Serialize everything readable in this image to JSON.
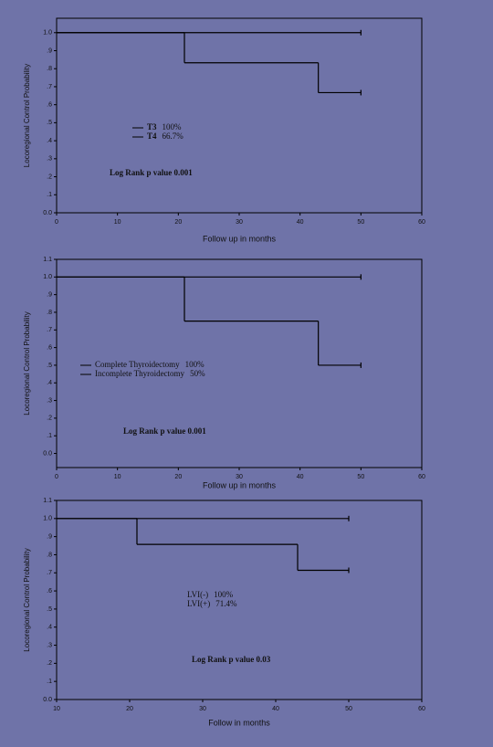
{
  "chart_data": [
    {
      "type": "line",
      "drawstyle": "steps-post",
      "ylabel": "Locoregional Control Probability",
      "xlabel": "Follow up in months",
      "annotation": "Log Rank p value 0.001",
      "legend_lines": true,
      "xlim": [
        0,
        60
      ],
      "xticks": [
        0,
        10,
        20,
        30,
        40,
        50,
        60
      ],
      "ylim": [
        0,
        1.08
      ],
      "yticks": [
        {
          "value": 0,
          "label": "0.0"
        },
        {
          "value": 0.1,
          "label": ".1"
        },
        {
          "value": 0.2,
          "label": ".2"
        },
        {
          "value": 0.3,
          "label": ".3"
        },
        {
          "value": 0.4,
          "label": ".4"
        },
        {
          "value": 0.5,
          "label": ".5"
        },
        {
          "value": 0.6,
          "label": ".6"
        },
        {
          "value": 0.7,
          "label": ".7"
        },
        {
          "value": 0.8,
          "label": ".8"
        },
        {
          "value": 0.9,
          "label": ".9"
        },
        {
          "value": 1.0,
          "label": "1.0"
        }
      ],
      "series": [
        {
          "name": "T3",
          "label": "100%",
          "color": "#000000",
          "x": [
            0,
            50
          ],
          "values": [
            1.0,
            1.0
          ]
        },
        {
          "name": "T4",
          "label": "66.7%",
          "color": "#000000",
          "x": [
            0,
            21,
            43,
            50
          ],
          "values": [
            1.0,
            0.833,
            0.667,
            0.667
          ]
        }
      ]
    },
    {
      "type": "line",
      "drawstyle": "steps-post",
      "ylabel": "Locoregional Control Probability",
      "xlabel": "Follow up in months",
      "annotation": "Log Rank p value 0.001",
      "legend_lines": true,
      "xlim": [
        0,
        60
      ],
      "xticks": [
        0,
        10,
        20,
        30,
        40,
        50,
        60
      ],
      "ylim": [
        -0.08,
        1.1
      ],
      "yticks": [
        {
          "value": 0,
          "label": "0.0"
        },
        {
          "value": 0.1,
          "label": ".1"
        },
        {
          "value": 0.2,
          "label": ".2"
        },
        {
          "value": 0.3,
          "label": ".3"
        },
        {
          "value": 0.4,
          "label": ".4"
        },
        {
          "value": 0.5,
          "label": ".5"
        },
        {
          "value": 0.6,
          "label": ".6"
        },
        {
          "value": 0.7,
          "label": ".7"
        },
        {
          "value": 0.8,
          "label": ".8"
        },
        {
          "value": 0.9,
          "label": ".9"
        },
        {
          "value": 1.0,
          "label": "1.0"
        },
        {
          "value": 1.1,
          "label": "1.1"
        }
      ],
      "series": [
        {
          "name": "Complete Thyroidectomy",
          "label": "100%",
          "color": "#000000",
          "x": [
            0,
            50
          ],
          "values": [
            1.0,
            1.0
          ]
        },
        {
          "name": "Incomplete Thyroidectomy",
          "label": "50%",
          "color": "#000000",
          "x": [
            0,
            21,
            43,
            50
          ],
          "values": [
            1.0,
            0.75,
            0.5,
            0.5
          ]
        }
      ]
    },
    {
      "type": "line",
      "drawstyle": "steps-post",
      "ylabel": "Locoregional Control Probability",
      "xlabel": "Follow in months",
      "annotation": "Log Rank p value 0.03",
      "legend_lines": false,
      "xlim": [
        10,
        60
      ],
      "xticks": [
        10,
        20,
        30,
        40,
        50,
        60
      ],
      "ylim": [
        0,
        1.1
      ],
      "yticks": [
        {
          "value": 0,
          "label": "0.0"
        },
        {
          "value": 0.1,
          "label": ".1"
        },
        {
          "value": 0.2,
          "label": ".2"
        },
        {
          "value": 0.3,
          "label": ".3"
        },
        {
          "value": 0.4,
          "label": ".4"
        },
        {
          "value": 0.5,
          "label": ".5"
        },
        {
          "value": 0.6,
          "label": ".6"
        },
        {
          "value": 0.7,
          "label": ".7"
        },
        {
          "value": 0.8,
          "label": ".8"
        },
        {
          "value": 0.9,
          "label": ".9"
        },
        {
          "value": 1.0,
          "label": "1.0"
        },
        {
          "value": 1.1,
          "label": "1.1"
        }
      ],
      "series": [
        {
          "name": "LVI(-)",
          "label": "100%",
          "color": "#000000",
          "x": [
            10,
            50
          ],
          "values": [
            1.0,
            1.0
          ]
        },
        {
          "name": "LVI(+)",
          "label": "71.4%",
          "color": "#000000",
          "x": [
            10,
            21,
            43,
            50
          ],
          "values": [
            1.0,
            0.857,
            0.714,
            0.714
          ]
        }
      ]
    }
  ]
}
